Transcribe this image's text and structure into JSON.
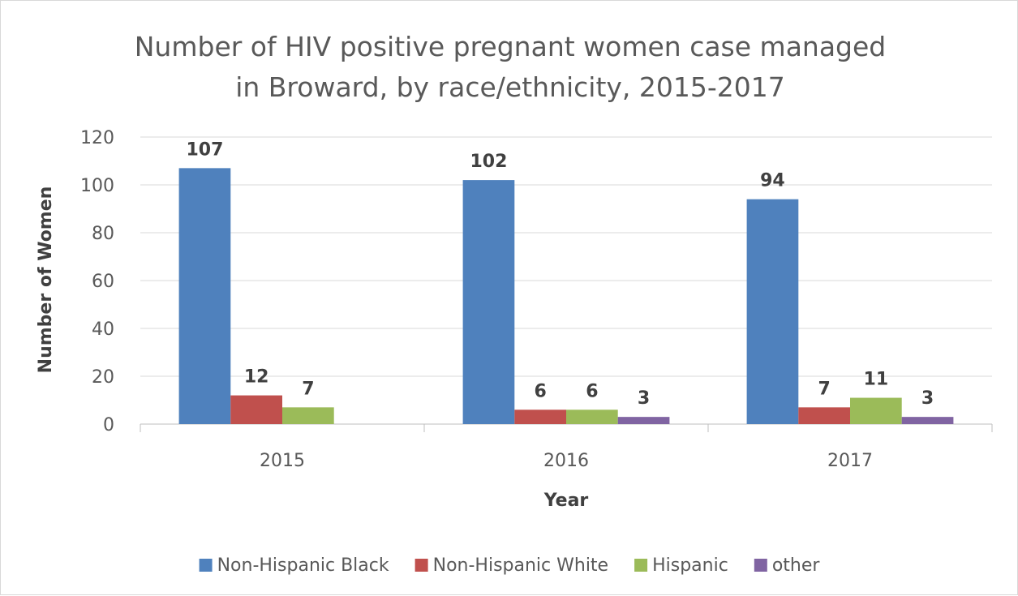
{
  "chart_data": {
    "type": "bar",
    "title_lines": [
      "Number of HIV positive pregnant women case managed",
      "in Broward, by race/ethnicity, 2015-2017"
    ],
    "xlabel": "Year",
    "ylabel": "Number of Women",
    "categories": [
      "2015",
      "2016",
      "2017"
    ],
    "ylim": [
      0,
      120
    ],
    "yticks": [
      0,
      20,
      40,
      60,
      80,
      100,
      120
    ],
    "grid": true,
    "legend_position": "bottom",
    "series": [
      {
        "name": "Non-Hispanic Black",
        "color": "#4f81bd",
        "values": [
          107,
          102,
          94
        ]
      },
      {
        "name": "Non-Hispanic White",
        "color": "#c0504d",
        "values": [
          12,
          6,
          7
        ]
      },
      {
        "name": "Hispanic",
        "color": "#9bbb59",
        "values": [
          7,
          6,
          11
        ]
      },
      {
        "name": "other",
        "color": "#8064a2",
        "values": [
          null,
          3,
          3
        ]
      }
    ]
  }
}
